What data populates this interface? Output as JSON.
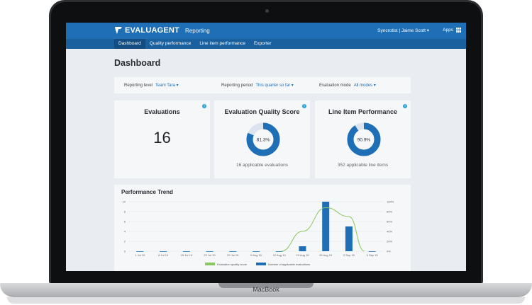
{
  "device": {
    "label": "MacBook"
  },
  "app": {
    "brand": "EVALUAGENT",
    "section": "Reporting",
    "user": "Syncrotist | Jaime Scott ▾",
    "apps_label": "Apps"
  },
  "nav": {
    "tabs": [
      {
        "label": "Dashboard",
        "active": true
      },
      {
        "label": "Quality performance",
        "active": false
      },
      {
        "label": "Line item performance",
        "active": false
      },
      {
        "label": "Exporter",
        "active": false
      }
    ]
  },
  "page": {
    "title": "Dashboard"
  },
  "filters": {
    "reporting_level_label": "Reporting level",
    "reporting_level_value": "Team Tara ▾",
    "reporting_period_label": "Reporting period",
    "reporting_period_value": "This quarter so far ▾",
    "evaluation_mode_label": "Evaluation mode",
    "evaluation_mode_value": "All modes ▾"
  },
  "cards": {
    "evaluations": {
      "title": "Evaluations",
      "value": "16"
    },
    "quality": {
      "title": "Evaluation Quality Score",
      "value_label": "81.3%",
      "value": 81.3,
      "sub": "16 applicable evaluations"
    },
    "line_item": {
      "title": "Line Item Performance",
      "value_label": "90.9%",
      "value": 90.9,
      "sub": "352 applicable line items"
    }
  },
  "colors": {
    "accent": "#1e6fb6",
    "line": "#8cc75e",
    "donut_track": "#dbe4ee"
  },
  "trend": {
    "title": "Performance Trend"
  },
  "chart_data": {
    "type": "bar",
    "categories": [
      "1 Jul 19",
      "8 Jul 19",
      "15 Jul 19",
      "22 Jul 19",
      "29 Jul 19",
      "5 Aug 19",
      "12 Aug 19",
      "19 Aug 19",
      "26 Aug 19",
      "2 Sep 19",
      "9 Sep 19"
    ],
    "series": [
      {
        "name": "Number of applicable evaluations",
        "type": "bar",
        "axis": "left",
        "values": [
          0,
          0,
          0,
          0,
          0,
          0,
          0,
          1,
          10,
          5,
          0
        ]
      },
      {
        "name": "Evaluation quality score",
        "type": "line",
        "axis": "right",
        "values": [
          null,
          null,
          null,
          null,
          null,
          null,
          null,
          40,
          88,
          70,
          null
        ]
      }
    ],
    "left_ticks": [
      "0",
      "2",
      "4",
      "6",
      "8",
      "10"
    ],
    "right_ticks": [
      "0%",
      "20%",
      "40%",
      "60%",
      "80%",
      "100%"
    ],
    "ylim_left": [
      0,
      10
    ],
    "ylim_right": [
      0,
      100
    ],
    "legend": [
      "Evaluation quality score",
      "Number of applicable evaluations"
    ],
    "legend_position": "bottom"
  }
}
